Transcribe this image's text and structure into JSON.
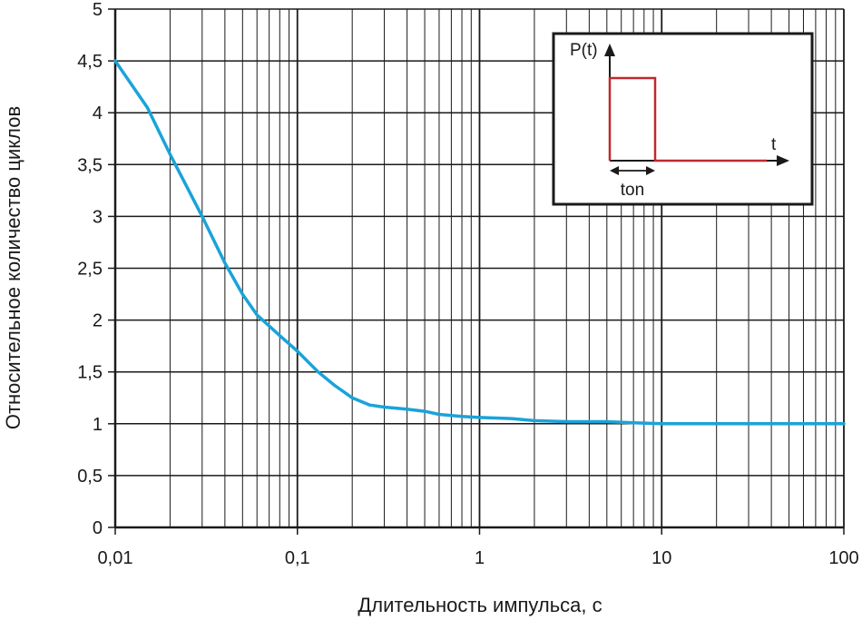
{
  "chart_data": {
    "type": "line",
    "xscale": "log",
    "xlim": [
      0.01,
      100
    ],
    "ylim": [
      0,
      5
    ],
    "grid": true,
    "xlabel": "Длительность импульса, с",
    "ylabel": "Относительное количество циклов",
    "x_tick_labels": [
      {
        "value": 0.01,
        "label": "0,01"
      },
      {
        "value": 0.1,
        "label": "0,1"
      },
      {
        "value": 1,
        "label": "1"
      },
      {
        "value": 10,
        "label": "10"
      },
      {
        "value": 100,
        "label": "100"
      }
    ],
    "y_tick_labels": [
      {
        "value": 0,
        "label": "0"
      },
      {
        "value": 0.5,
        "label": "0,5"
      },
      {
        "value": 1,
        "label": "1"
      },
      {
        "value": 1.5,
        "label": "1,5"
      },
      {
        "value": 2,
        "label": "2"
      },
      {
        "value": 2.5,
        "label": "2,5"
      },
      {
        "value": 3,
        "label": "3"
      },
      {
        "value": 3.5,
        "label": "3,5"
      },
      {
        "value": 4,
        "label": "4"
      },
      {
        "value": 4.5,
        "label": "4,5"
      },
      {
        "value": 5,
        "label": "5"
      }
    ],
    "series": [
      {
        "color": "#1aa3d9",
        "x": [
          0.01,
          0.015,
          0.02,
          0.03,
          0.04,
          0.05,
          0.06,
          0.08,
          0.1,
          0.13,
          0.16,
          0.2,
          0.25,
          0.3,
          0.4,
          0.5,
          0.6,
          0.8,
          1,
          1.5,
          2,
          3,
          5,
          7,
          10,
          20,
          50,
          100
        ],
        "y": [
          4.5,
          4.05,
          3.6,
          3.0,
          2.55,
          2.25,
          2.05,
          1.85,
          1.7,
          1.5,
          1.37,
          1.25,
          1.18,
          1.16,
          1.14,
          1.12,
          1.09,
          1.07,
          1.06,
          1.05,
          1.03,
          1.02,
          1.02,
          1.01,
          1.0,
          1.0,
          1.0,
          1.0
        ]
      }
    ]
  },
  "inset": {
    "y_label": "P(t)",
    "x_label": "t",
    "width_label": "ton",
    "pulse_color": "#c0282d"
  }
}
